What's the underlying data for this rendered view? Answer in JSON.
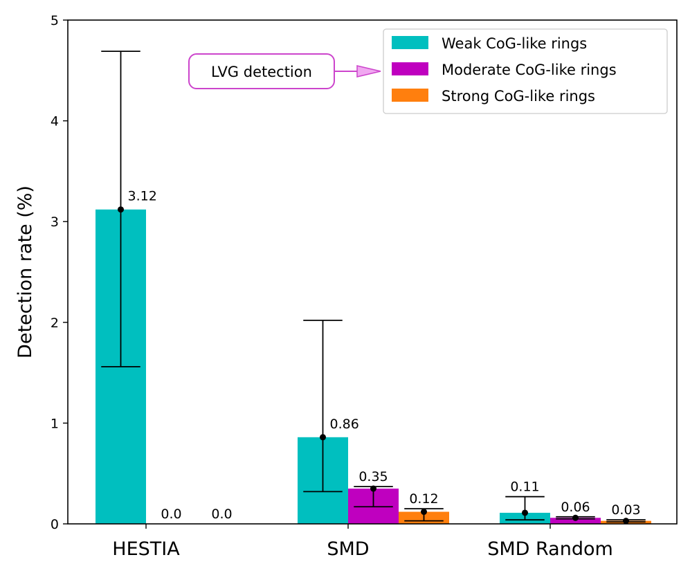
{
  "chart_data": {
    "type": "bar",
    "title": "",
    "xlabel": "",
    "ylabel": "Detection rate (%)",
    "ylim": [
      0,
      5
    ],
    "yticks": [
      0,
      1,
      2,
      3,
      4,
      5
    ],
    "grid": false,
    "categories": [
      "HESTIA",
      "SMD",
      "SMD Random"
    ],
    "series": [
      {
        "name": "Weak CoG-like rings",
        "color": "#00bfbf",
        "values": [
          3.12,
          0.86,
          0.11
        ],
        "labels": [
          "3.12",
          "0.86",
          "0.11"
        ],
        "err_low": [
          1.56,
          0.32,
          0.04
        ],
        "err_high": [
          4.69,
          2.02,
          0.27
        ]
      },
      {
        "name": "Moderate CoG-like rings",
        "color": "#bf00bf",
        "values": [
          0.0,
          0.35,
          0.06
        ],
        "labels": [
          "0.0",
          "0.35",
          "0.06"
        ],
        "err_low": [
          null,
          0.17,
          0.05
        ],
        "err_high": [
          null,
          0.37,
          0.07
        ]
      },
      {
        "name": "Strong CoG-like rings",
        "color": "#ff7f0e",
        "values": [
          0.0,
          0.12,
          0.03
        ],
        "labels": [
          "0.0",
          "0.12",
          "0.03"
        ],
        "err_low": [
          null,
          0.03,
          0.02
        ],
        "err_high": [
          null,
          0.15,
          0.04
        ]
      }
    ],
    "legend_position": "top-right",
    "annotation": {
      "text": "LVG detection",
      "color": "#cc44cc",
      "arrow_fill": "#f0a8f0"
    }
  }
}
